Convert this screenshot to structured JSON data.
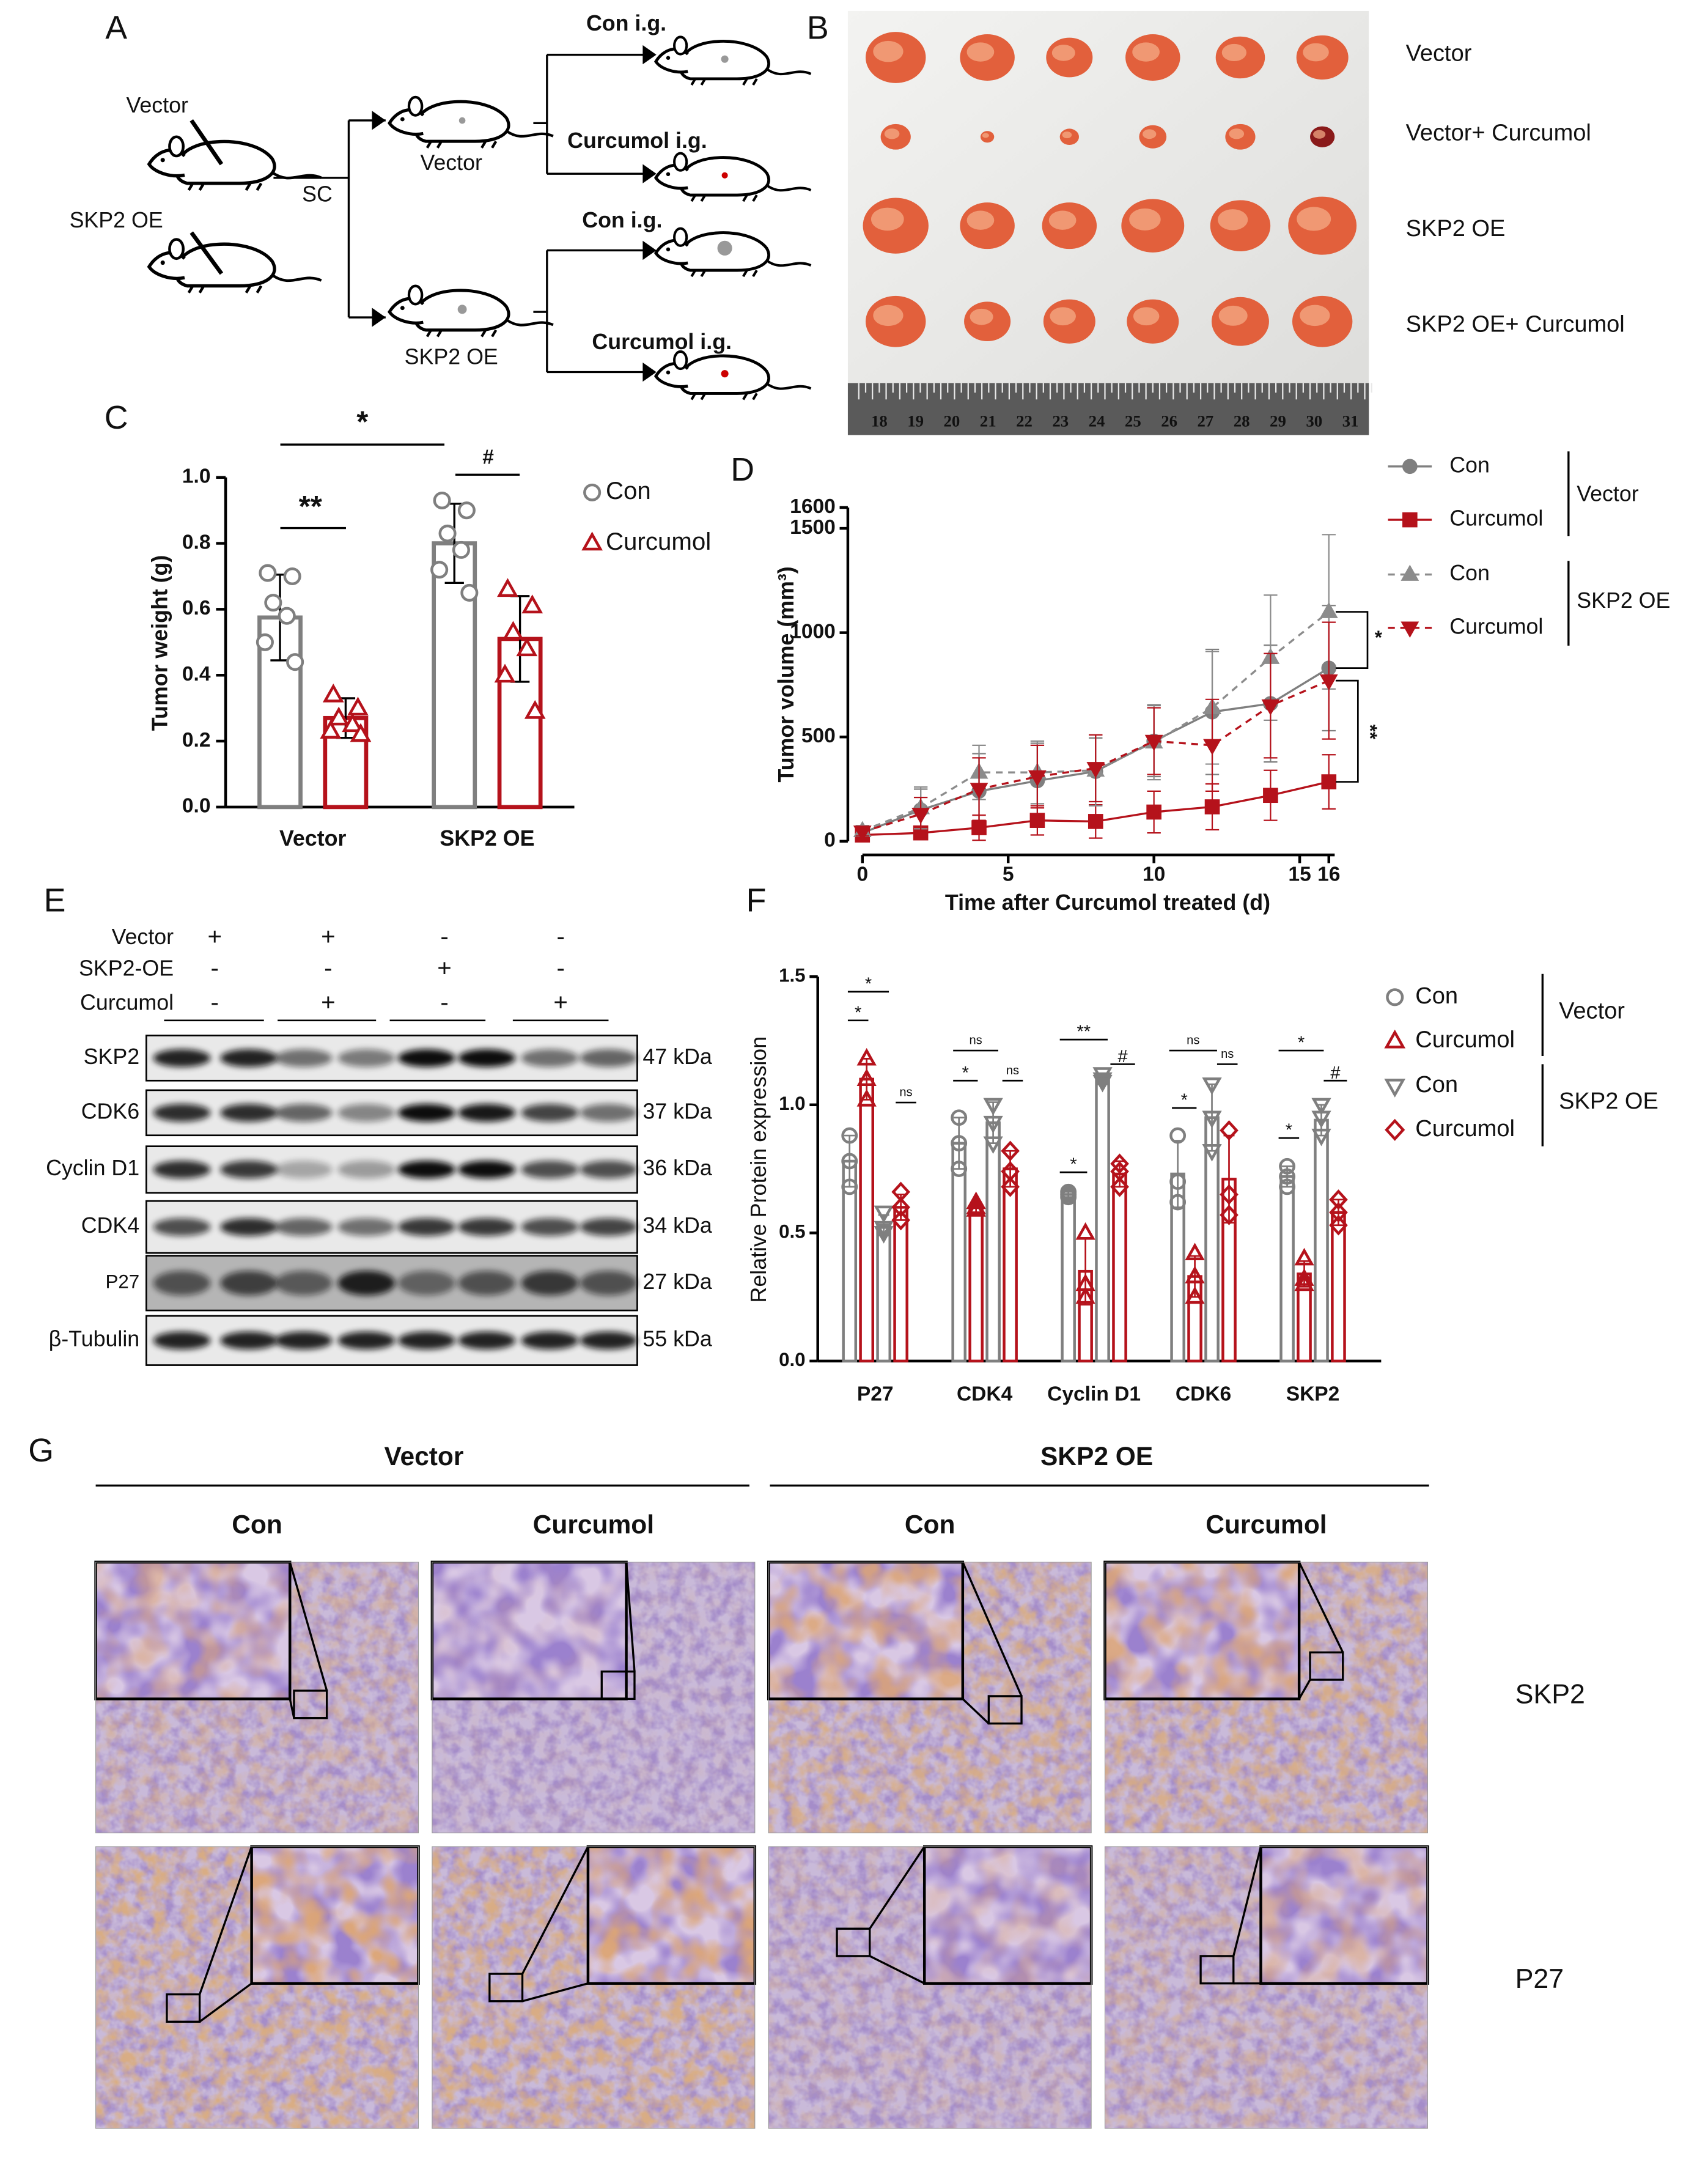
{
  "panel_labels": [
    "A",
    "B",
    "C",
    "D",
    "E",
    "F",
    "G"
  ],
  "diagram": {
    "injections": [
      "Vector",
      "SKP2 OE"
    ],
    "route": "SC",
    "groups": [
      "Vector",
      "SKP2 OE"
    ],
    "treatments": [
      "Con i.g.",
      "Curcumol i.g.",
      "Con i.g.",
      "Curcumol i.g."
    ]
  },
  "photo": {
    "rows": [
      "Vector",
      "Vector+ Curcumol",
      "SKP2 OE",
      "SKP2 OE+ Curcumol"
    ],
    "ruler": [
      18,
      19,
      20,
      21,
      22,
      23,
      24,
      25,
      26,
      27,
      28,
      29,
      30,
      31
    ]
  },
  "chart_data": [
    {
      "type": "bar",
      "ylabel": "Tumor weight (g)",
      "categories": [
        "Vector",
        "SKP2 OE"
      ],
      "ylim": [
        0,
        1
      ],
      "yticks": [
        {
          "value": 0,
          "label": "0.0"
        },
        0.2,
        0.4,
        0.6,
        0.8,
        {
          "value": 1,
          "label": "1.0"
        }
      ],
      "series": [
        {
          "name": "Con",
          "color": "#7f7f7f",
          "marker": "circle",
          "values": [
            0.575,
            0.8
          ],
          "errors": [
            0.13,
            0.12
          ],
          "points": [
            [
              0.71,
              0.7,
              0.62,
              0.58,
              0.5,
              0.44
            ],
            [
              0.93,
              0.9,
              0.83,
              0.78,
              0.72,
              0.65
            ]
          ]
        },
        {
          "name": "Curcumol",
          "color": "#b5121b",
          "marker": "triangle",
          "values": [
            0.27,
            0.51
          ],
          "errors": [
            0.06,
            0.13
          ],
          "points": [
            [
              0.34,
              0.3,
              0.27,
              0.25,
              0.23,
              0.22
            ],
            [
              0.66,
              0.61,
              0.53,
              0.48,
              0.4,
              0.29
            ]
          ]
        }
      ],
      "annotations": [
        "*",
        "**",
        "#"
      ]
    },
    {
      "type": "line",
      "xlabel": "Time after Curcumol treated (d)",
      "ylabel": "Tumor volume (mm³)",
      "x": [
        0,
        2,
        4,
        6,
        8,
        10,
        12,
        14,
        16
      ],
      "xlim": [
        -0.5,
        16.2
      ],
      "xticks": [
        0,
        5,
        10,
        15,
        16
      ],
      "ylim": [
        0,
        1600
      ],
      "yticks": [
        0,
        500,
        1000,
        1500,
        1600
      ],
      "legend_groups": [
        {
          "label": "Vector"
        },
        {
          "label": "SKP2 OE"
        }
      ],
      "series": [
        {
          "name": "Con",
          "color": "#7f7f7f",
          "marker": "circle",
          "dash": false,
          "values": [
            40,
            150,
            240,
            290,
            335,
            480,
            620,
            660,
            830
          ],
          "errors": [
            20,
            100,
            180,
            180,
            160,
            170,
            300,
            280,
            300
          ]
        },
        {
          "name": "Curcumol",
          "color": "#b5121b",
          "marker": "square",
          "dash": false,
          "values": [
            30,
            40,
            65,
            100,
            95,
            140,
            165,
            220,
            285
          ],
          "errors": [
            15,
            30,
            60,
            70,
            80,
            100,
            110,
            120,
            130
          ]
        },
        {
          "name": "Con",
          "color": "#8c8c8c",
          "marker": "triangle",
          "dash": true,
          "values": [
            50,
            160,
            330,
            330,
            340,
            475,
            640,
            880,
            1100
          ],
          "errors": [
            25,
            100,
            130,
            150,
            170,
            180,
            270,
            300,
            370
          ]
        },
        {
          "name": "Curcumol",
          "color": "#b5121b",
          "marker": "triangle-down",
          "dash": true,
          "values": [
            45,
            130,
            250,
            310,
            350,
            480,
            460,
            650,
            770
          ],
          "errors": [
            20,
            80,
            150,
            150,
            160,
            160,
            220,
            250,
            280
          ]
        }
      ],
      "annotations": [
        "*",
        "**"
      ]
    },
    {
      "type": "bar",
      "ylabel": "Relative Protein expression",
      "categories": [
        "P27",
        "CDK4",
        "Cyclin D1",
        "CDK6",
        "SKP2"
      ],
      "ylim": [
        0,
        1.5
      ],
      "yticks": [
        {
          "value": 0,
          "label": "0.0"
        },
        0.5,
        {
          "value": 1,
          "label": "1.0"
        },
        1.5
      ],
      "legend_groups": [
        {
          "label": "Vector"
        },
        {
          "label": "SKP2 OE"
        }
      ],
      "series": [
        {
          "name": "Con",
          "color": "#7f7f7f",
          "marker": "circle",
          "values": [
            0.78,
            0.85,
            0.65,
            0.73,
            0.72
          ],
          "errors": [
            0.1,
            0.1,
            0.01,
            0.13,
            0.04
          ],
          "points": [
            [
              0.88,
              0.78,
              0.68
            ],
            [
              0.95,
              0.85,
              0.75
            ],
            [
              0.66,
              0.65,
              0.64
            ],
            [
              0.88,
              0.7,
              0.62
            ],
            [
              0.76,
              0.72,
              0.68
            ]
          ]
        },
        {
          "name": "Curcumol",
          "color": "#b5121b",
          "marker": "triangle",
          "values": [
            1.1,
            0.6,
            0.35,
            0.33,
            0.34
          ],
          "errors": [
            0.08,
            0.02,
            0.13,
            0.08,
            0.05
          ],
          "points": [
            [
              1.18,
              1.1,
              1.02
            ],
            [
              0.62,
              0.6,
              0.59
            ],
            [
              0.5,
              0.3,
              0.25
            ],
            [
              0.42,
              0.33,
              0.25
            ],
            [
              0.4,
              0.32,
              0.3
            ]
          ]
        },
        {
          "name": "Con",
          "color": "#7f7f7f",
          "marker": "triangle-down",
          "values": [
            0.53,
            0.93,
            1.1,
            0.95,
            0.94
          ],
          "errors": [
            0.04,
            0.08,
            0.02,
            0.13,
            0.06
          ],
          "points": [
            [
              0.58,
              0.52,
              0.5
            ],
            [
              1.0,
              0.93,
              0.85
            ],
            [
              1.12,
              1.1,
              1.09
            ],
            [
              1.08,
              0.95,
              0.82
            ],
            [
              1.0,
              0.95,
              0.88
            ]
          ]
        },
        {
          "name": "Curcumol",
          "color": "#b5121b",
          "marker": "diamond",
          "values": [
            0.6,
            0.75,
            0.73,
            0.71,
            0.58
          ],
          "errors": [
            0.05,
            0.07,
            0.05,
            0.17,
            0.05
          ],
          "points": [
            [
              0.66,
              0.6,
              0.55
            ],
            [
              0.82,
              0.74,
              0.68
            ],
            [
              0.77,
              0.74,
              0.68
            ],
            [
              0.9,
              0.65,
              0.57
            ],
            [
              0.63,
              0.58,
              0.53
            ]
          ]
        }
      ],
      "annotations": [
        "*",
        "*",
        "ns",
        "ns",
        "*",
        "ns",
        "**",
        "*",
        "#",
        "ns",
        "*",
        "ns",
        "*",
        "*",
        "#"
      ]
    }
  ],
  "blot": {
    "conditions": [
      {
        "label": "Vector",
        "signs": [
          "+",
          "+",
          "-",
          "-"
        ]
      },
      {
        "label": "SKP2-OE",
        "signs": [
          "-",
          "-",
          "+",
          "-"
        ]
      },
      {
        "label": "Curcumol",
        "signs": [
          "-",
          "+",
          "-",
          "+"
        ]
      }
    ],
    "bands": [
      {
        "label": "SKP2",
        "size": "47 kDa"
      },
      {
        "label": "CDK6",
        "size": "37 kDa"
      },
      {
        "label": "Cyclin D1",
        "size": "36 kDa"
      },
      {
        "label": "CDK4",
        "size": "34 kDa"
      },
      {
        "label": "P27",
        "size": "27 kDa"
      },
      {
        "label": "β-Tubulin",
        "size": "55 kDa"
      }
    ]
  },
  "ihc": {
    "groups": [
      "Vector",
      "SKP2 OE"
    ],
    "columns": [
      "Con",
      "Curcumol",
      "Con",
      "Curcumol"
    ],
    "rows": [
      "SKP2",
      "P27"
    ]
  }
}
